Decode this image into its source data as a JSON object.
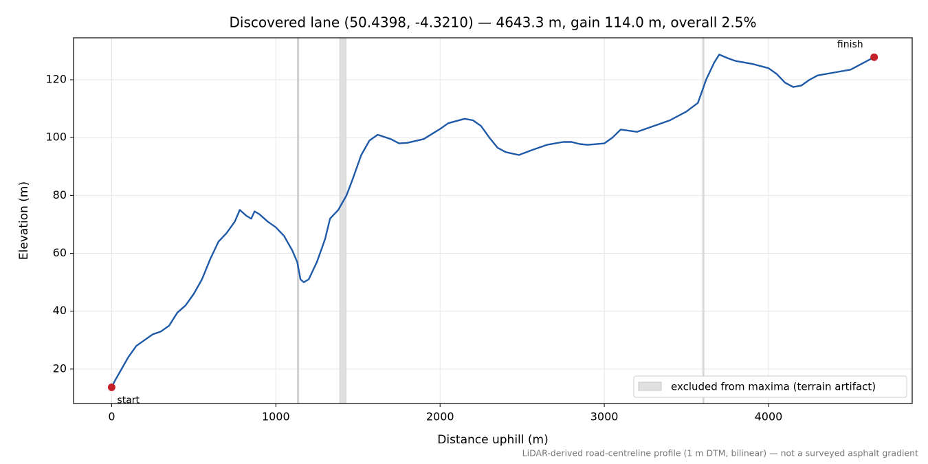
{
  "chart_data": {
    "type": "line",
    "title": "Discovered lane (50.4398, -4.3210) — 4643.3 m, gain 114.0 m, overall 2.5%",
    "xlabel": "Distance uphill (m)",
    "ylabel": "Elevation (m)",
    "note": "LiDAR-derived road-centreline profile (1 m DTM, bilinear) — not a surveyed asphalt gradient",
    "start_label": "start",
    "finish_label": "finish",
    "color": "#1f5aa8",
    "endpoint_color": "#c51f2a",
    "x": [
      0,
      20,
      50,
      100,
      150,
      200,
      250,
      300,
      350,
      400,
      450,
      500,
      550,
      600,
      650,
      700,
      750,
      780,
      820,
      850,
      870,
      900,
      950,
      1000,
      1050,
      1100,
      1130,
      1150,
      1170,
      1200,
      1250,
      1300,
      1330,
      1380,
      1430,
      1470,
      1520,
      1570,
      1620,
      1700,
      1750,
      1800,
      1900,
      2000,
      2050,
      2150,
      2200,
      2250,
      2300,
      2350,
      2400,
      2480,
      2550,
      2650,
      2750,
      2800,
      2850,
      2900,
      3000,
      3050,
      3100,
      3200,
      3300,
      3400,
      3500,
      3570,
      3620,
      3670,
      3700,
      3750,
      3800,
      3900,
      4000,
      4050,
      4100,
      4150,
      4200,
      4250,
      4300,
      4400,
      4500,
      4600,
      4643.3
    ],
    "values": [
      13.7,
      16,
      19,
      24,
      28,
      30,
      32,
      33,
      35,
      39.5,
      42,
      46,
      51,
      58,
      64,
      67,
      71,
      75,
      73,
      72,
      74.5,
      73.5,
      71,
      69,
      66,
      61,
      57,
      51,
      50,
      51,
      57,
      65,
      72,
      75,
      80,
      86,
      94,
      99,
      101,
      99.5,
      98,
      98.2,
      99.5,
      103,
      105,
      106.5,
      106,
      104,
      100,
      96.5,
      95,
      94,
      95.5,
      97.5,
      98.5,
      98.5,
      97.8,
      97.5,
      98,
      100,
      102.8,
      102,
      104,
      106,
      109,
      112,
      120,
      126,
      128.7,
      127.5,
      126.5,
      125.5,
      124,
      122,
      119,
      117.5,
      118,
      120,
      121.5,
      122.5,
      123.5,
      126.5,
      127.8
    ],
    "excluded": {
      "label": "excluded from maxima (terrain artifact)",
      "color": "#e0e0e0",
      "ranges": [
        [
          1130,
          1140
        ],
        [
          1389,
          1427
        ],
        [
          3600,
          3607
        ]
      ]
    },
    "xlim": [
      -232,
      4875
    ],
    "ylim": [
      8.1,
      134.5
    ],
    "xticks": [
      0,
      1000,
      2000,
      3000,
      4000
    ],
    "yticks": [
      20,
      40,
      60,
      80,
      100,
      120
    ],
    "grid": true,
    "legend": "lower right"
  }
}
